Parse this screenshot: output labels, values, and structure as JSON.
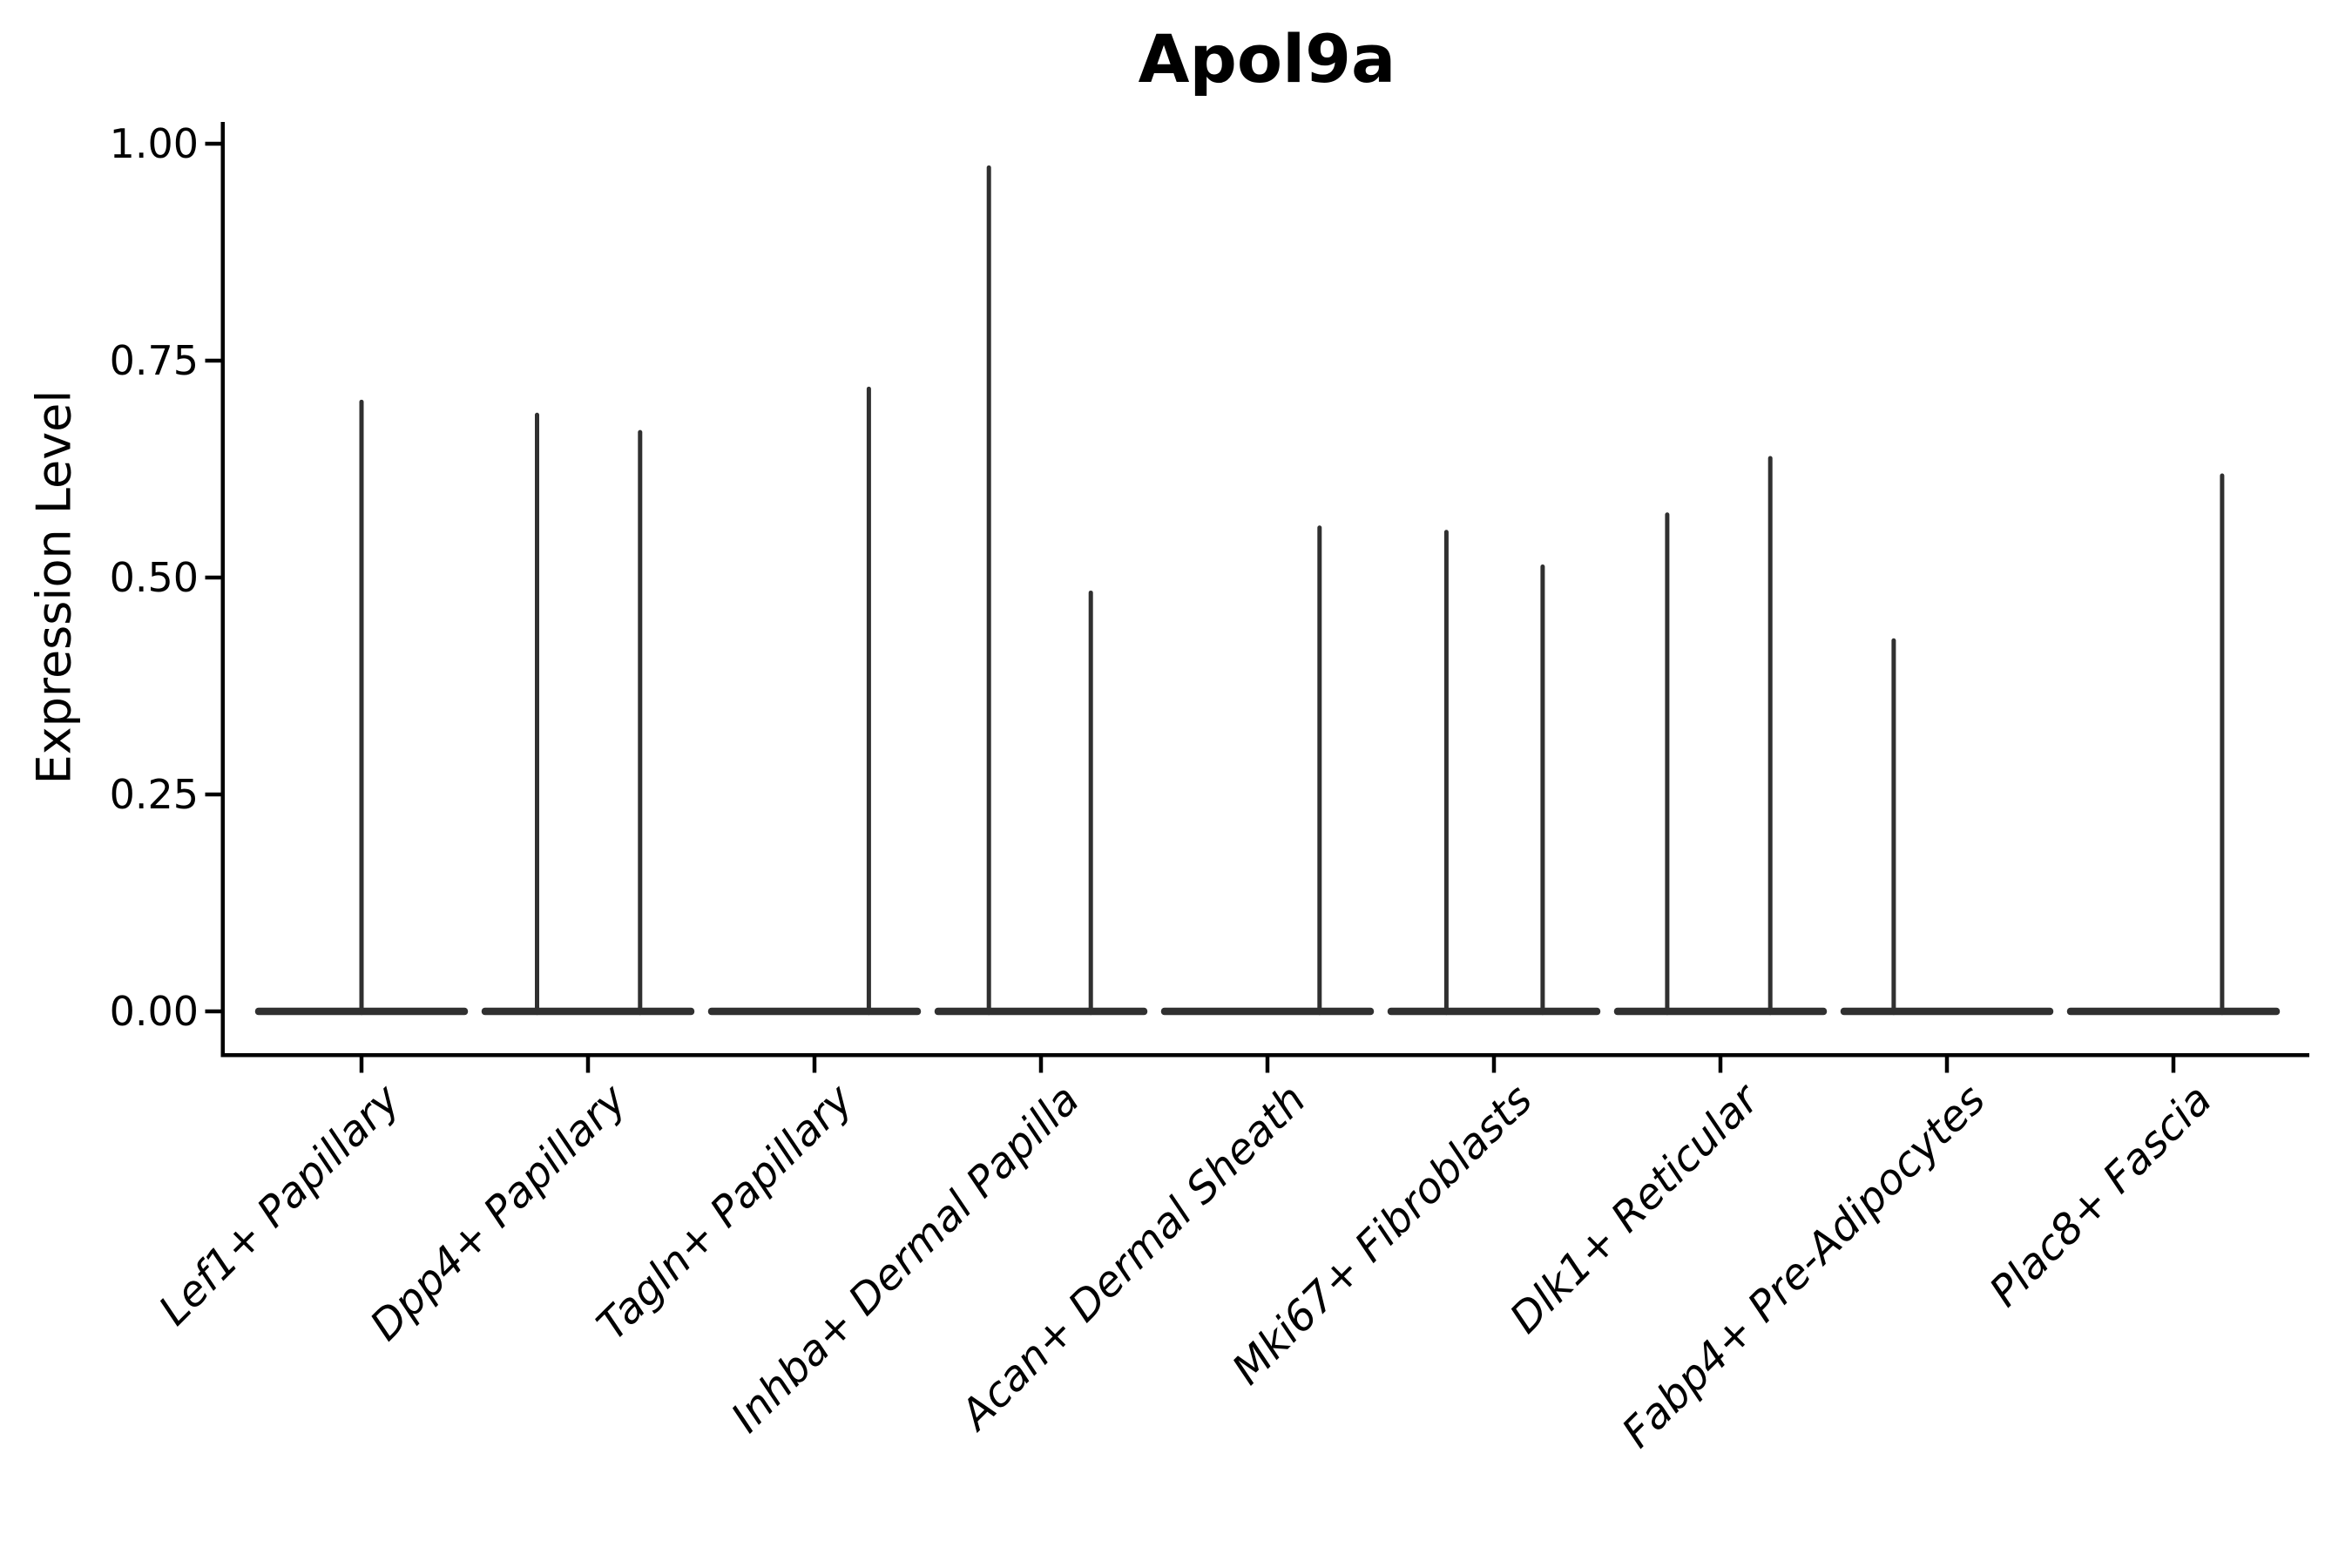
{
  "figure": {
    "title": "Apol9a"
  },
  "chart_data": {
    "type": "violin",
    "title": "Apol9a",
    "subtitle": "",
    "xlabel": "",
    "ylabel": "Expression Level",
    "grid": false,
    "legend": null,
    "ylim": [
      -0.048,
      1.025
    ],
    "yticks": [
      0.0,
      0.25,
      0.5,
      0.75,
      1.0
    ],
    "ytick_labels": [
      "0.00",
      "0.25",
      "0.50",
      "0.75",
      "1.00"
    ],
    "axis_color": "#000000",
    "violin_color": "#303030",
    "violin_halfwidth": 0.47,
    "categories": [
      {
        "label": "Lef1+ Papillary",
        "spikes": [
          {
            "dx": 0.0,
            "value": 0.705
          }
        ]
      },
      {
        "label": "Dpp4+ Papillary",
        "spikes": [
          {
            "dx": -0.225,
            "value": 0.69
          },
          {
            "dx": 0.23,
            "value": 0.67
          }
        ]
      },
      {
        "label": "Tagln+ Papillary",
        "spikes": [
          {
            "dx": 0.24,
            "value": 0.72
          }
        ]
      },
      {
        "label": "Inhba+ Dermal Papilla",
        "spikes": [
          {
            "dx": -0.23,
            "value": 0.975
          },
          {
            "dx": 0.22,
            "value": 0.485
          }
        ]
      },
      {
        "label": "Acan+ Dermal Sheath",
        "spikes": [
          {
            "dx": 0.23,
            "value": 0.56
          }
        ]
      },
      {
        "label": "Mki67+ Fibroblasts",
        "spikes": [
          {
            "dx": -0.21,
            "value": 0.555
          },
          {
            "dx": 0.215,
            "value": 0.515
          }
        ]
      },
      {
        "label": "Dlk1+ Reticular",
        "spikes": [
          {
            "dx": -0.235,
            "value": 0.575
          },
          {
            "dx": 0.22,
            "value": 0.64
          }
        ]
      },
      {
        "label": "Fabp4+ Pre-Adipocytes",
        "spikes": [
          {
            "dx": -0.235,
            "value": 0.43
          }
        ]
      },
      {
        "label": "Plac8+ Fascia",
        "spikes": [
          {
            "dx": 0.215,
            "value": 0.62
          }
        ]
      }
    ]
  }
}
